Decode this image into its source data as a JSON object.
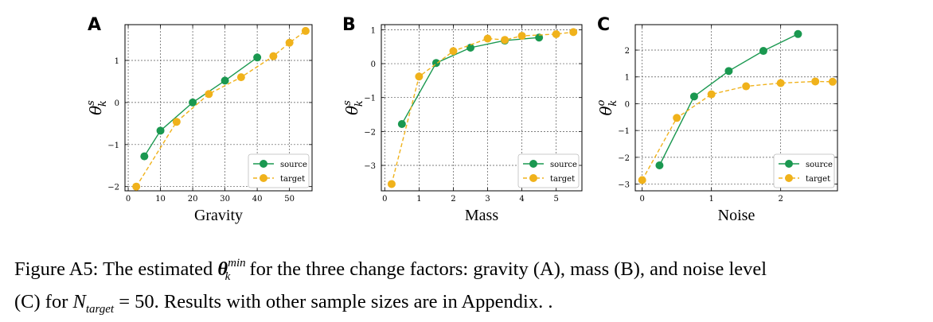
{
  "figure": {
    "series_colors": {
      "source": "#1a9850",
      "target": "#f0b21b"
    },
    "legend_labels": [
      "source",
      "target"
    ]
  },
  "chart_data": [
    {
      "type": "line",
      "panel_label": "A",
      "xlabel": "Gravity",
      "ylabel": "θ_k^s",
      "xlim": [
        -1,
        57
      ],
      "ylim": [
        -2.1,
        1.85
      ],
      "xticks": [
        0,
        10,
        20,
        30,
        40,
        50
      ],
      "yticks": [
        -2,
        -1,
        0,
        1
      ],
      "grid": true,
      "legend_position": "lower-right",
      "series": [
        {
          "name": "source",
          "color": "#1a9850",
          "style": "solid",
          "x": [
            5,
            10,
            20,
            30,
            40
          ],
          "y": [
            -1.28,
            -0.67,
            0.0,
            0.52,
            1.07
          ]
        },
        {
          "name": "target",
          "color": "#f0b21b",
          "style": "dashed",
          "x": [
            2.5,
            15,
            25,
            35,
            45,
            50,
            55
          ],
          "y": [
            -2.0,
            -0.46,
            0.2,
            0.6,
            1.1,
            1.42,
            1.7
          ]
        }
      ]
    },
    {
      "type": "line",
      "panel_label": "B",
      "xlabel": "Mass",
      "ylabel": "θ_k^s",
      "xlim": [
        -0.1,
        5.75
      ],
      "ylim": [
        -3.75,
        1.15
      ],
      "xticks": [
        0,
        1,
        2,
        3,
        4,
        5
      ],
      "yticks": [
        -3,
        -2,
        -1,
        0,
        1
      ],
      "grid": true,
      "legend_position": "lower-right",
      "series": [
        {
          "name": "source",
          "color": "#1a9850",
          "style": "solid",
          "x": [
            0.5,
            1.5,
            2.5,
            3.5,
            4.5
          ],
          "y": [
            -1.78,
            0.02,
            0.47,
            0.68,
            0.77
          ]
        },
        {
          "name": "target",
          "color": "#f0b21b",
          "style": "dashed",
          "x": [
            0.2,
            1.0,
            2.0,
            3.0,
            3.5,
            4.0,
            5.0,
            5.5
          ],
          "y": [
            -3.55,
            -0.38,
            0.37,
            0.74,
            0.7,
            0.82,
            0.87,
            0.93
          ]
        }
      ]
    },
    {
      "type": "line",
      "panel_label": "C",
      "xlabel": "Noise",
      "ylabel": "θ_k^o",
      "xlim": [
        -0.1,
        2.82
      ],
      "ylim": [
        -3.25,
        2.95
      ],
      "xticks": [
        0,
        1,
        2
      ],
      "yticks": [
        -3,
        -2,
        -1,
        0,
        1,
        2
      ],
      "grid": true,
      "legend_position": "lower-right",
      "series": [
        {
          "name": "source",
          "color": "#1a9850",
          "style": "solid",
          "x": [
            0.25,
            0.75,
            1.25,
            1.75,
            2.25
          ],
          "y": [
            -2.3,
            0.27,
            1.22,
            1.97,
            2.6
          ]
        },
        {
          "name": "target",
          "color": "#f0b21b",
          "style": "dashed",
          "x": [
            0.0,
            0.5,
            1.0,
            1.5,
            2.0,
            2.5,
            2.75
          ],
          "y": [
            -2.85,
            -0.53,
            0.35,
            0.65,
            0.77,
            0.83,
            0.82
          ]
        }
      ]
    }
  ],
  "caption": {
    "prefix": "Figure A5: The estimated ",
    "theta": "θ",
    "theta_sup": "min",
    "theta_sub": "k",
    "middle": " for the three change factors: gravity (A), mass (B), and noise level",
    "line2_prefix": "(C) for ",
    "n_symbol": "N",
    "n_sub": "target",
    "line2_suffix": " = 50. Results with other sample sizes are in Appendix. ."
  }
}
